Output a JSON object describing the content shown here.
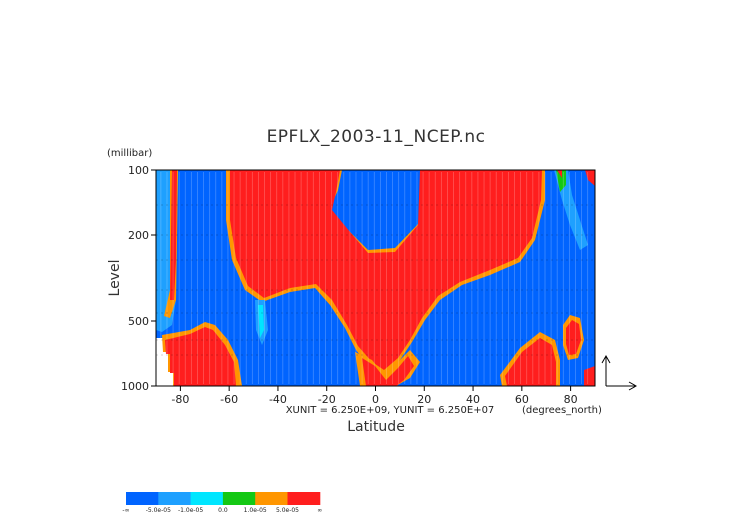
{
  "chart_data": {
    "type": "heatmap",
    "title": "EPFLX_2003-11_NCEP.nc",
    "xlabel": "Latitude",
    "ylabel": "Level",
    "x_units": "(degrees_north)",
    "y_units": "(millibar)",
    "x_range": [
      -90,
      90
    ],
    "y_range": [
      1000,
      100
    ],
    "y_scale": "log",
    "x_ticks": [
      "-80",
      "-60",
      "-40",
      "-20",
      "0",
      "20",
      "40",
      "60",
      "80"
    ],
    "y_ticks": [
      "100",
      "200",
      "500",
      "1000"
    ],
    "vector_unit_text": "XUNIT = 6.250E+09, YUNIT = 6.250E+07",
    "colorbar": {
      "colors": [
        "#0064ff",
        "#1ea0ff",
        "#00e6ff",
        "#14c814",
        "#ff9600",
        "#ff1e1e"
      ],
      "labels": [
        "-∞",
        "-5.0e-05",
        "-1.0e-05",
        "0.0",
        "1.0e-05",
        "5.0e-05",
        "∞"
      ]
    },
    "grid": false,
    "legend": "bottom-left colorbar"
  }
}
